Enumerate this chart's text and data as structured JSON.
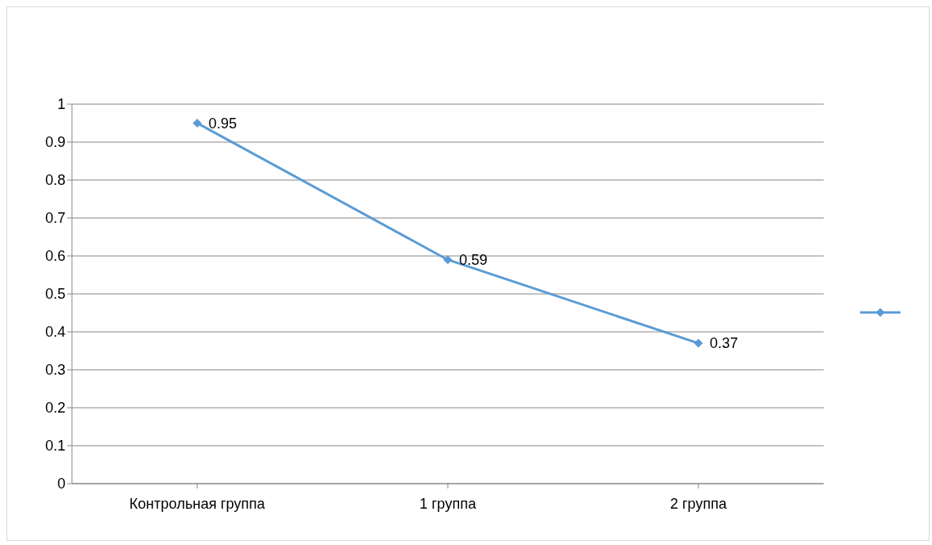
{
  "chart_data": {
    "type": "line",
    "categories": [
      "Контрольная группа",
      "1 группа",
      "2 группа"
    ],
    "series": [
      {
        "color": "#5b9bd5",
        "values": [
          0.95,
          0.59,
          0.37
        ]
      }
    ],
    "ylim": [
      0,
      1
    ],
    "yticks": [
      0,
      0.1,
      0.2,
      0.3,
      0.4,
      0.5,
      0.6,
      0.7,
      0.8,
      0.9,
      1
    ],
    "grid": "y",
    "marker": "diamond",
    "data_labels": true
  }
}
